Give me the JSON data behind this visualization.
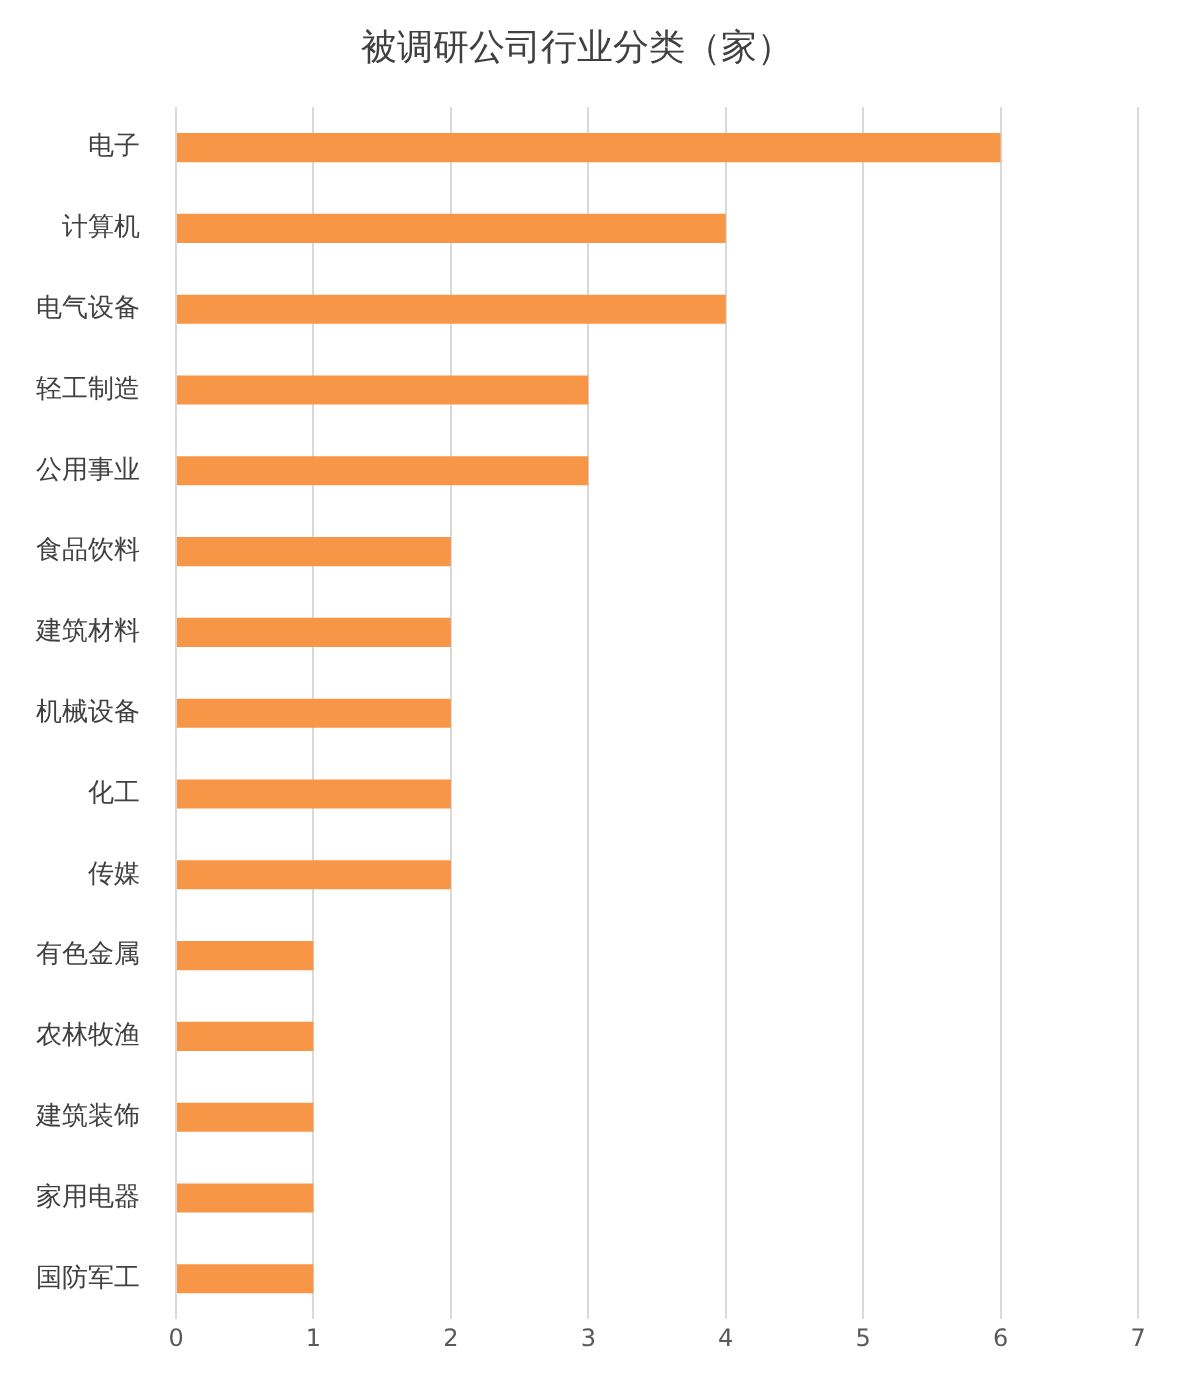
{
  "chart_data": {
    "type": "bar",
    "orientation": "horizontal",
    "title": "被调研公司行业分类（家）",
    "categories": [
      "电子",
      "计算机",
      "电气设备",
      "轻工制造",
      "公用事业",
      "食品饮料",
      "建筑材料",
      "机械设备",
      "化工",
      "传媒",
      "有色金属",
      "农林牧渔",
      "建筑装饰",
      "家用电器",
      "国防军工"
    ],
    "values": [
      6,
      4,
      4,
      3,
      3,
      2,
      2,
      2,
      2,
      2,
      1,
      1,
      1,
      1,
      1
    ],
    "color": "#f79646",
    "xlim": [
      0,
      7
    ],
    "xticks": [
      0,
      1,
      2,
      3,
      4,
      5,
      6,
      7
    ],
    "grid": "x",
    "legend": false
  }
}
